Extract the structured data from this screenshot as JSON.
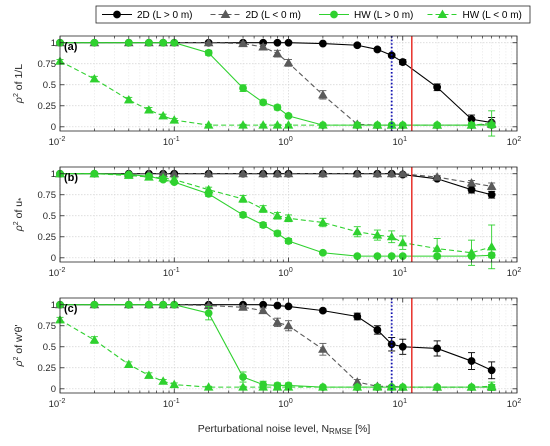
{
  "chart_data": {
    "type": "line",
    "xscale": "log",
    "xlim": [
      0.01,
      100
    ],
    "xticks": [
      0.01,
      0.1,
      1,
      10,
      100
    ],
    "xtick_labels": [
      "10-2",
      "10-1",
      "100",
      "101",
      "102"
    ],
    "xlabel": "Perturbational noise level, NRMSE [%]",
    "xlabel_main": "Perturbational noise level, N",
    "xlabel_sub": "RMSE",
    "xlabel_tail": " [%]",
    "grid": true,
    "legend_position": "top-center",
    "vlines": [
      {
        "x": 12,
        "color": "#e8302a",
        "style": "solid",
        "panels": [
          0,
          1,
          2
        ]
      },
      {
        "x": 8,
        "color": "#1010b0",
        "style": "dotted",
        "panels": [
          0,
          2
        ]
      }
    ],
    "series_style": [
      {
        "name": "2D (L > 0 m)",
        "color": "#000000",
        "marker": "circle",
        "dash": "solid"
      },
      {
        "name": "2D (L < 0 m)",
        "color": "#5a5a5a",
        "marker": "triangle",
        "dash": "dashed"
      },
      {
        "name": "HW (L > 0 m)",
        "color": "#2fd12f",
        "marker": "circle",
        "dash": "solid"
      },
      {
        "name": "HW (L < 0 m)",
        "color": "#2fd12f",
        "marker": "triangle",
        "dash": "dashed"
      }
    ],
    "x": [
      0.01,
      0.02,
      0.04,
      0.06,
      0.08,
      0.1,
      0.2,
      0.4,
      0.6,
      0.8,
      1,
      2,
      4,
      6,
      8,
      10,
      20,
      40,
      60
    ],
    "panels": [
      {
        "tag": "(a)",
        "ylabel_prefix": "ρ",
        "ylabel_sup": "2",
        "ylabel_suffix": " of 1/L",
        "ylim": [
          -0.05,
          1.08
        ],
        "yticks": [
          0,
          0.25,
          0.5,
          0.75,
          1
        ],
        "ytick_labels": [
          "0",
          "0.25",
          "0.5",
          "0.75",
          "1"
        ],
        "series": [
          {
            "name": "2D (L > 0 m)",
            "values": [
              1,
              1,
              1,
              1,
              1,
              1,
              1,
              1,
              1,
              1,
              1,
              0.99,
              0.97,
              0.92,
              0.85,
              0.77,
              0.47,
              0.09,
              0.05
            ],
            "errors": [
              0,
              0,
              0,
              0,
              0,
              0,
              0,
              0,
              0,
              0,
              0,
              0.01,
              0.02,
              0.02,
              0.02,
              0.03,
              0.04,
              0.05,
              0.06
            ]
          },
          {
            "name": "2D (L < 0 m)",
            "values": [
              1,
              1,
              1,
              1,
              1,
              1,
              1,
              0.99,
              0.95,
              0.87,
              0.76,
              0.38,
              0.03,
              0.02,
              0.02,
              0.02,
              0.02,
              0.02,
              0.03
            ],
            "errors": [
              0,
              0,
              0,
              0,
              0,
              0,
              0,
              0.02,
              0.03,
              0.04,
              0.04,
              0.05,
              0.02,
              0.01,
              0.01,
              0.01,
              0.02,
              0.02,
              0.04
            ]
          },
          {
            "name": "HW (L > 0 m)",
            "values": [
              1,
              1,
              1,
              1,
              1,
              1,
              0.88,
              0.46,
              0.29,
              0.23,
              0.13,
              0.02,
              0.02,
              0.02,
              0.02,
              0.02,
              0.02,
              0.02,
              0.02
            ],
            "errors": [
              0,
              0,
              0,
              0,
              0,
              0,
              0.03,
              0.04,
              0.03,
              0.03,
              0.02,
              0.01,
              0.01,
              0.01,
              0.01,
              0.01,
              0.01,
              0.02,
              0.03
            ]
          },
          {
            "name": "HW (L < 0 m)",
            "values": [
              0.78,
              0.57,
              0.32,
              0.2,
              0.13,
              0.08,
              0.02,
              0.02,
              0.02,
              0.02,
              0.02,
              0.02,
              0.02,
              0.02,
              0.02,
              0.02,
              0.02,
              0.02,
              0.04
            ],
            "errors": [
              0.02,
              0.03,
              0.03,
              0.03,
              0.02,
              0.02,
              0.01,
              0.01,
              0.01,
              0.01,
              0.01,
              0.01,
              0.01,
              0.01,
              0.01,
              0.01,
              0.02,
              0.03,
              0.15
            ]
          }
        ]
      },
      {
        "tag": "(b)",
        "ylabel_prefix": "ρ",
        "ylabel_sup": "2",
        "ylabel_suffix": " of u",
        "ylabel_sub": "*",
        "ylim": [
          -0.05,
          1.08
        ],
        "yticks": [
          0,
          0.25,
          0.5,
          0.75,
          1
        ],
        "ytick_labels": [
          "0",
          "0.25",
          "0.5",
          "0.75",
          "1"
        ],
        "series": [
          {
            "name": "2D (L > 0 m)",
            "values": [
              1,
              1,
              1,
              1,
              1,
              1,
              1,
              1,
              1,
              1,
              1,
              1,
              1,
              1,
              1,
              0.99,
              0.94,
              0.81,
              0.75
            ],
            "errors": [
              0,
              0,
              0,
              0,
              0,
              0,
              0,
              0,
              0,
              0,
              0,
              0,
              0,
              0,
              0,
              0.01,
              0.02,
              0.04,
              0.04
            ]
          },
          {
            "name": "2D (L < 0 m)",
            "values": [
              1,
              1,
              1,
              1,
              1,
              1,
              1,
              1,
              1,
              1,
              1,
              1,
              1,
              1,
              1,
              1,
              0.96,
              0.89,
              0.85
            ],
            "errors": [
              0,
              0,
              0,
              0,
              0,
              0,
              0,
              0,
              0,
              0,
              0,
              0,
              0,
              0,
              0,
              0.01,
              0.02,
              0.03,
              0.04
            ]
          },
          {
            "name": "HW (L > 0 m)",
            "values": [
              1,
              1,
              0.99,
              0.97,
              0.93,
              0.9,
              0.76,
              0.51,
              0.39,
              0.29,
              0.2,
              0.06,
              0.02,
              0.02,
              0.02,
              0.02,
              0.02,
              0.02,
              0.03
            ],
            "errors": [
              0,
              0,
              0.01,
              0.02,
              0.02,
              0.02,
              0.03,
              0.03,
              0.03,
              0.03,
              0.03,
              0.02,
              0.01,
              0.01,
              0.01,
              0.01,
              0.01,
              0.02,
              0.03
            ]
          },
          {
            "name": "HW (L < 0 m)",
            "values": [
              1,
              1,
              0.98,
              0.96,
              0.95,
              0.93,
              0.81,
              0.7,
              0.58,
              0.5,
              0.47,
              0.42,
              0.31,
              0.27,
              0.25,
              0.18,
              0.11,
              0.06,
              0.13
            ],
            "errors": [
              0,
              0,
              0.01,
              0.02,
              0.02,
              0.02,
              0.03,
              0.04,
              0.04,
              0.04,
              0.04,
              0.05,
              0.06,
              0.06,
              0.07,
              0.08,
              0.12,
              0.15,
              0.26
            ]
          }
        ]
      },
      {
        "tag": "(c)",
        "ylabel_prefix": "ρ",
        "ylabel_sup": "2",
        "ylabel_suffix": " of w'θ'",
        "ylim": [
          -0.05,
          1.08
        ],
        "yticks": [
          0,
          0.25,
          0.5,
          0.75,
          1
        ],
        "ytick_labels": [
          "0",
          "0.25",
          "0.5",
          "0.75",
          "1"
        ],
        "series": [
          {
            "name": "2D (L > 0 m)",
            "values": [
              1,
              1,
              1,
              1,
              1,
              1,
              1,
              1,
              1,
              0.99,
              0.98,
              0.93,
              0.86,
              0.7,
              0.53,
              0.5,
              0.48,
              0.33,
              0.22
            ],
            "errors": [
              0,
              0,
              0,
              0,
              0,
              0,
              0,
              0,
              0,
              0.01,
              0.01,
              0.02,
              0.04,
              0.05,
              0.08,
              0.09,
              0.09,
              0.1,
              0.1
            ]
          },
          {
            "name": "2D (L < 0 m)",
            "values": [
              1,
              1,
              1,
              1,
              1,
              1,
              0.99,
              0.97,
              0.93,
              0.79,
              0.75,
              0.47,
              0.08,
              0.03,
              0.03,
              0.02,
              0.02,
              0.02,
              0.02
            ],
            "errors": [
              0,
              0,
              0,
              0,
              0,
              0,
              0.01,
              0.02,
              0.03,
              0.05,
              0.06,
              0.07,
              0.03,
              0.02,
              0.01,
              0.01,
              0.01,
              0.02,
              0.03
            ]
          },
          {
            "name": "HW (L > 0 m)",
            "values": [
              1,
              1,
              1,
              1,
              1,
              1,
              0.9,
              0.14,
              0.05,
              0.04,
              0.04,
              0.02,
              0.02,
              0.02,
              0.02,
              0.02,
              0.02,
              0.02,
              0.02
            ],
            "errors": [
              0,
              0,
              0,
              0,
              0,
              0,
              0.08,
              0.06,
              0.04,
              0.03,
              0.03,
              0.01,
              0.01,
              0.01,
              0.01,
              0.01,
              0.01,
              0.02,
              0.03
            ]
          },
          {
            "name": "HW (L < 0 m)",
            "values": [
              0.82,
              0.58,
              0.29,
              0.16,
              0.09,
              0.05,
              0.02,
              0.02,
              0.02,
              0.02,
              0.02,
              0.02,
              0.02,
              0.02,
              0.02,
              0.02,
              0.02,
              0.02,
              0.03
            ],
            "errors": [
              0.03,
              0.04,
              0.03,
              0.03,
              0.02,
              0.02,
              0.01,
              0.01,
              0.01,
              0.01,
              0.01,
              0.01,
              0.01,
              0.01,
              0.01,
              0.01,
              0.02,
              0.02,
              0.05
            ]
          }
        ]
      }
    ]
  }
}
